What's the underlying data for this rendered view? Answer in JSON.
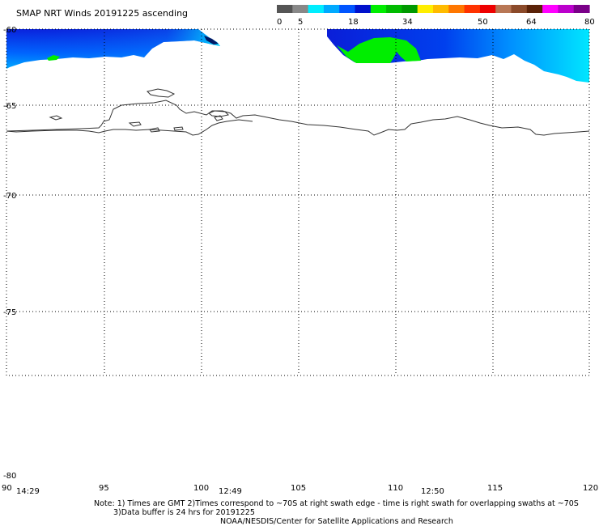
{
  "title": "SMAP NRT Winds 20191225 ascending",
  "colorbar": {
    "ticks": [
      "0",
      "5",
      "18",
      "34",
      "50",
      "64",
      "80"
    ],
    "segments": [
      {
        "color": "#555555"
      },
      {
        "color": "#888888"
      },
      {
        "color": "#00eeff"
      },
      {
        "color": "#00aaff"
      },
      {
        "color": "#0055ff"
      },
      {
        "color": "#0011cc"
      },
      {
        "color": "#00ee00"
      },
      {
        "color": "#00bb00"
      },
      {
        "color": "#009900"
      },
      {
        "color": "#ffee00"
      },
      {
        "color": "#ffbb00"
      },
      {
        "color": "#ff7700"
      },
      {
        "color": "#ff3300"
      },
      {
        "color": "#ee0000"
      },
      {
        "color": "#b87755"
      },
      {
        "color": "#8b4a2a"
      },
      {
        "color": "#5a2208"
      },
      {
        "color": "#ff00ff"
      },
      {
        "color": "#bb00cc"
      },
      {
        "color": "#7a0088"
      }
    ]
  },
  "lat_labels": [
    "-60",
    "-65",
    "-70",
    "-75",
    "-80"
  ],
  "lon_labels": [
    "90",
    "95",
    "100",
    "105",
    "110",
    "115",
    "120"
  ],
  "times": [
    "14:29",
    "12:49",
    "12:50"
  ],
  "notes": {
    "line1": "Note: 1) Times are GMT 2)Times correspond to ~70S at right swath edge - time is right swath for overlapping swaths at ~70S",
    "line2": "3)Data buffer is 24 hrs for 20191225",
    "line3": "NOAA/NESDIS/Center for Satellite Applications and Research"
  },
  "colors": {
    "wind_low": "#00eeff",
    "wind_mid": "#0055ff",
    "wind_high": "#0011cc",
    "wind_gale": "#00ee00",
    "coastline": "#333333"
  }
}
